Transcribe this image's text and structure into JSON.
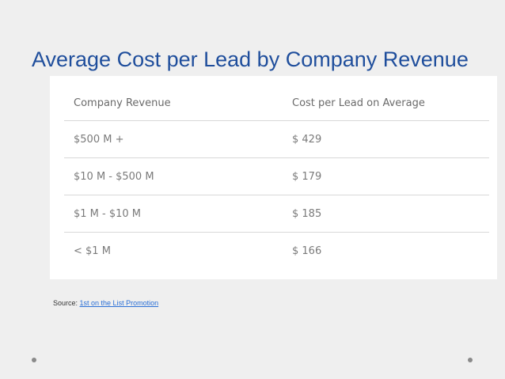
{
  "title": "Average Cost per Lead by Company Revenue",
  "table": {
    "headers": [
      "Company Revenue",
      "Cost per Lead on Average"
    ],
    "rows": [
      [
        "$500 M +",
        "$ 429"
      ],
      [
        "$10 M - $500 M",
        "$ 179"
      ],
      [
        "$1 M - $10 M",
        "$ 185"
      ],
      [
        "< $1 M",
        "$ 166"
      ]
    ]
  },
  "source": {
    "prefix": "Source: ",
    "link_text": "1st on the List Promotion"
  },
  "colors": {
    "title": "#1f4e9c",
    "link": "#2a6fd6",
    "background": "#efefef"
  }
}
